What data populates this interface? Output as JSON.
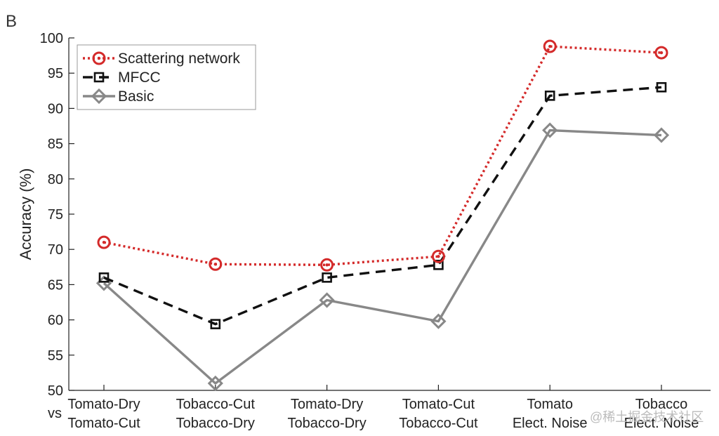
{
  "panel_label": "B",
  "watermark": "@稀土掘金技术社区",
  "chart_data": {
    "type": "line",
    "title": "",
    "xlabel": "",
    "ylabel": "Accuracy (%)",
    "ylim": [
      50,
      100
    ],
    "yticks": [
      50,
      55,
      60,
      65,
      70,
      75,
      80,
      85,
      90,
      95,
      100
    ],
    "vs_label": "vs",
    "categories": [
      {
        "line1": "Tomato-Dry",
        "line2": "Tomato-Cut"
      },
      {
        "line1": "Tobacco-Cut",
        "line2": "Tobacco-Dry"
      },
      {
        "line1": "Tomato-Dry",
        "line2": "Tobacco-Dry"
      },
      {
        "line1": "Tomato-Cut",
        "line2": "Tobacco-Cut"
      },
      {
        "line1": "Tomato",
        "line2": "Elect. Noise"
      },
      {
        "line1": "Tobacco",
        "line2": "Elect. Noise"
      }
    ],
    "legend_position": "top-left",
    "grid": false,
    "series": [
      {
        "name": "Scattering network",
        "values": [
          71,
          67.9,
          67.8,
          69,
          98.8,
          97.9
        ],
        "color": "#d42a2a",
        "dash": "dotted",
        "marker": "circle"
      },
      {
        "name": "MFCC",
        "values": [
          66,
          59.4,
          66,
          67.8,
          91.8,
          93
        ],
        "color": "#111111",
        "dash": "dashed",
        "marker": "square"
      },
      {
        "name": "Basic",
        "values": [
          65.2,
          51,
          62.8,
          59.8,
          86.9,
          86.2
        ],
        "color": "#888888",
        "dash": "solid",
        "marker": "diamond"
      }
    ]
  }
}
